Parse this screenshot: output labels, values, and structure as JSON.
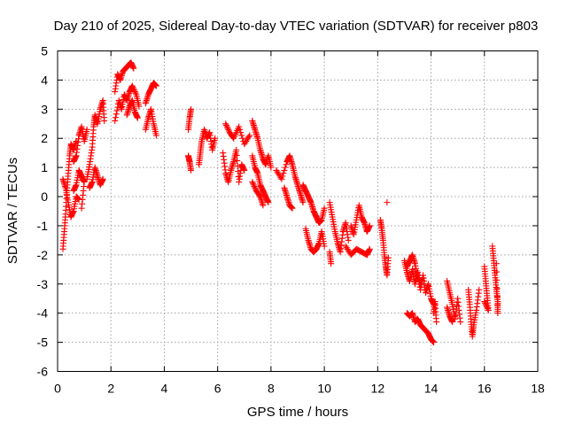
{
  "chart_data": {
    "type": "scatter",
    "title": "Day 210 of 2025, Sidereal Day-to-day VTEC variation (SDTVAR) for receiver p803",
    "xlabel": "GPS time / hours",
    "ylabel": "SDTVAR / TECUs",
    "xlim": [
      0,
      18
    ],
    "ylim": [
      -6,
      5
    ],
    "xticks": [
      0,
      2,
      4,
      6,
      8,
      10,
      12,
      14,
      16,
      18
    ],
    "yticks": [
      -6,
      -5,
      -4,
      -3,
      -2,
      -1,
      0,
      1,
      2,
      3,
      4,
      5
    ],
    "grid": true,
    "marker": "+",
    "marker_color": "#ff0000",
    "series": [
      {
        "name": "SDTVAR",
        "tracks": [
          [
            [
              0.2,
              -1.8
            ],
            [
              0.25,
              -1.2
            ],
            [
              0.3,
              -0.6
            ],
            [
              0.35,
              0.2
            ],
            [
              0.4,
              0.8
            ],
            [
              0.45,
              1.4
            ],
            [
              0.5,
              1.8
            ],
            [
              0.6,
              1.6
            ],
            [
              0.7,
              1.9
            ]
          ],
          [
            [
              0.2,
              0.6
            ],
            [
              0.3,
              0.3
            ],
            [
              0.4,
              -0.2
            ],
            [
              0.5,
              -0.7
            ],
            [
              0.6,
              -0.5
            ],
            [
              0.7,
              0.0
            ],
            [
              0.8,
              -0.1
            ]
          ],
          [
            [
              0.6,
              1.2
            ],
            [
              0.7,
              1.4
            ],
            [
              0.8,
              2.1
            ],
            [
              0.9,
              2.4
            ],
            [
              1.0,
              1.9
            ],
            [
              1.1,
              2.3
            ]
          ],
          [
            [
              0.6,
              0.2
            ],
            [
              0.7,
              0.4
            ],
            [
              0.8,
              0.9
            ],
            [
              0.9,
              0.7
            ],
            [
              1.0,
              0.5
            ],
            [
              0.9,
              -0.4
            ]
          ],
          [
            [
              1.1,
              0.6
            ],
            [
              1.2,
              1.1
            ],
            [
              1.3,
              1.7
            ],
            [
              1.35,
              2.4
            ],
            [
              1.4,
              2.8
            ],
            [
              1.5,
              2.5
            ],
            [
              1.6,
              3.0
            ],
            [
              1.7,
              3.3
            ],
            [
              1.75,
              2.6
            ]
          ],
          [
            [
              1.2,
              0.3
            ],
            [
              1.3,
              0.5
            ],
            [
              1.4,
              1.0
            ],
            [
              1.5,
              0.7
            ],
            [
              1.6,
              0.4
            ],
            [
              1.7,
              0.6
            ]
          ],
          [
            [
              2.15,
              3.6
            ],
            [
              2.25,
              4.2
            ],
            [
              2.35,
              4.0
            ],
            [
              2.45,
              4.3
            ],
            [
              2.55,
              4.4
            ],
            [
              2.65,
              4.5
            ],
            [
              2.75,
              4.6
            ],
            [
              2.85,
              4.4
            ]
          ],
          [
            [
              2.15,
              2.6
            ],
            [
              2.3,
              3.3
            ],
            [
              2.4,
              3.0
            ],
            [
              2.5,
              3.5
            ],
            [
              2.6,
              3.3
            ],
            [
              2.7,
              3.6
            ],
            [
              2.8,
              3.8
            ],
            [
              2.95,
              3.5
            ],
            [
              3.05,
              3.1
            ]
          ],
          [
            [
              2.6,
              2.8
            ],
            [
              2.7,
              3.1
            ],
            [
              2.8,
              3.3
            ],
            [
              2.9,
              2.9
            ],
            [
              3.0,
              2.7
            ]
          ],
          [
            [
              3.3,
              3.2
            ],
            [
              3.4,
              3.5
            ],
            [
              3.5,
              3.7
            ],
            [
              3.6,
              3.9
            ],
            [
              3.7,
              3.8
            ]
          ],
          [
            [
              3.3,
              2.3
            ],
            [
              3.4,
              2.7
            ],
            [
              3.5,
              3.0
            ],
            [
              3.6,
              2.5
            ],
            [
              3.7,
              2.1
            ]
          ],
          [
            [
              4.9,
              2.3
            ],
            [
              4.95,
              2.7
            ],
            [
              5.0,
              3.0
            ]
          ],
          [
            [
              4.9,
              1.4
            ],
            [
              4.95,
              1.2
            ],
            [
              5.0,
              0.9
            ]
          ],
          [
            [
              5.3,
              1.1
            ],
            [
              5.35,
              1.5
            ],
            [
              5.4,
              1.9
            ],
            [
              5.5,
              2.3
            ],
            [
              5.6,
              2.0
            ],
            [
              5.7,
              2.2
            ],
            [
              5.8,
              1.6
            ],
            [
              5.9,
              2.0
            ]
          ],
          [
            [
              6.2,
              1.5
            ],
            [
              6.3,
              0.8
            ],
            [
              6.4,
              0.5
            ],
            [
              6.5,
              0.9
            ],
            [
              6.6,
              1.2
            ],
            [
              6.7,
              1.6
            ],
            [
              6.8,
              0.5
            ],
            [
              6.9,
              1.1
            ],
            [
              7.0,
              0.9
            ]
          ],
          [
            [
              6.3,
              2.5
            ],
            [
              6.45,
              2.2
            ],
            [
              6.6,
              2.0
            ],
            [
              6.8,
              2.4
            ],
            [
              7.0,
              1.8
            ],
            [
              7.2,
              2.1
            ]
          ],
          [
            [
              7.3,
              2.6
            ],
            [
              7.4,
              2.3
            ],
            [
              7.5,
              2.0
            ],
            [
              7.6,
              1.6
            ],
            [
              7.7,
              1.3
            ],
            [
              7.8,
              1.1
            ],
            [
              7.9,
              1.4
            ],
            [
              8.0,
              1.0
            ]
          ],
          [
            [
              7.3,
              1.4
            ],
            [
              7.4,
              1.0
            ],
            [
              7.5,
              0.8
            ],
            [
              7.6,
              0.4
            ],
            [
              7.7,
              0.2
            ],
            [
              7.8,
              0.0
            ],
            [
              7.9,
              -0.2
            ]
          ],
          [
            [
              7.3,
              0.5
            ],
            [
              7.45,
              0.2
            ],
            [
              7.6,
              0.0
            ],
            [
              7.7,
              -0.3
            ]
          ],
          [
            [
              8.2,
              0.9
            ],
            [
              8.4,
              0.6
            ],
            [
              8.6,
              1.2
            ],
            [
              8.7,
              1.4
            ],
            [
              8.8,
              1.1
            ],
            [
              8.9,
              0.7
            ],
            [
              9.0,
              0.4
            ],
            [
              9.1,
              0.1
            ],
            [
              9.2,
              -0.2
            ]
          ],
          [
            [
              8.5,
              0.3
            ],
            [
              8.6,
              0.0
            ],
            [
              8.7,
              -0.3
            ],
            [
              8.8,
              -0.4
            ]
          ],
          [
            [
              9.2,
              0.4
            ],
            [
              9.3,
              0.2
            ],
            [
              9.4,
              0.0
            ],
            [
              9.5,
              -0.2
            ],
            [
              9.6,
              -0.5
            ],
            [
              9.7,
              -0.7
            ],
            [
              9.8,
              -0.9
            ],
            [
              9.9,
              -0.8
            ],
            [
              10.0,
              -0.4
            ]
          ],
          [
            [
              9.3,
              -1.1
            ],
            [
              9.4,
              -1.5
            ],
            [
              9.5,
              -1.8
            ],
            [
              9.6,
              -1.9
            ],
            [
              9.7,
              -1.8
            ],
            [
              9.8,
              -1.6
            ],
            [
              9.9,
              -1.2
            ],
            [
              10.0,
              -1.7
            ]
          ],
          [
            [
              10.2,
              -0.2
            ],
            [
              10.3,
              -0.7
            ],
            [
              10.4,
              -1.2
            ],
            [
              10.5,
              -1.6
            ],
            [
              10.6,
              -1.9
            ],
            [
              10.7,
              -1.2
            ],
            [
              10.8,
              -0.9
            ],
            [
              10.9,
              -1.5
            ]
          ],
          [
            [
              10.2,
              -1.9
            ],
            [
              10.25,
              -2.3
            ]
          ],
          [
            [
              11.0,
              -1.0
            ],
            [
              11.1,
              -1.3
            ],
            [
              11.2,
              -0.8
            ],
            [
              11.3,
              -0.3
            ],
            [
              11.4,
              -0.7
            ],
            [
              11.5,
              -0.9
            ],
            [
              11.6,
              -1.2
            ],
            [
              11.7,
              -1.0
            ]
          ],
          [
            [
              10.8,
              -1.7
            ],
            [
              11.0,
              -2.0
            ],
            [
              11.2,
              -1.8
            ],
            [
              11.4,
              -1.9
            ],
            [
              11.6,
              -2.0
            ],
            [
              11.7,
              -1.8
            ]
          ],
          [
            [
              12.1,
              -0.8
            ],
            [
              12.15,
              -1.1
            ],
            [
              12.2,
              -1.5
            ],
            [
              12.25,
              -2.0
            ],
            [
              12.3,
              -2.4
            ],
            [
              12.35,
              -2.7
            ],
            [
              12.4,
              -2.1
            ]
          ],
          [
            [
              12.35,
              -0.2
            ]
          ],
          [
            [
              13.0,
              -2.2
            ],
            [
              13.1,
              -2.6
            ],
            [
              13.2,
              -2.9
            ],
            [
              13.3,
              -2.5
            ],
            [
              13.4,
              -3.0
            ],
            [
              13.5,
              -2.6
            ],
            [
              13.6,
              -3.2
            ],
            [
              13.7,
              -2.7
            ],
            [
              13.8,
              -3.3
            ],
            [
              13.9,
              -3.0
            ],
            [
              14.0,
              -3.5
            ],
            [
              14.1,
              -3.7
            ]
          ],
          [
            [
              13.1,
              -2.4
            ],
            [
              13.2,
              -2.2
            ],
            [
              13.3,
              -2.0
            ],
            [
              13.4,
              -2.3
            ],
            [
              13.5,
              -2.8
            ],
            [
              13.6,
              -2.9
            ]
          ],
          [
            [
              13.1,
              -4.0
            ],
            [
              13.2,
              -4.1
            ],
            [
              13.3,
              -4.0
            ],
            [
              13.4,
              -4.3
            ],
            [
              13.5,
              -4.2
            ],
            [
              13.6,
              -4.4
            ],
            [
              13.7,
              -4.5
            ],
            [
              13.8,
              -4.6
            ],
            [
              13.9,
              -4.7
            ],
            [
              14.0,
              -4.9
            ],
            [
              14.1,
              -5.0
            ]
          ],
          [
            [
              14.1,
              -4.0
            ],
            [
              14.15,
              -3.6
            ],
            [
              14.2,
              -4.3
            ]
          ],
          [
            [
              14.6,
              -2.9
            ],
            [
              14.7,
              -3.3
            ],
            [
              14.8,
              -3.7
            ],
            [
              14.9,
              -4.2
            ],
            [
              15.0,
              -3.5
            ],
            [
              15.1,
              -4.3
            ]
          ],
          [
            [
              14.6,
              -3.8
            ],
            [
              14.7,
              -4.1
            ],
            [
              14.8,
              -4.3
            ]
          ],
          [
            [
              15.4,
              -3.2
            ],
            [
              15.45,
              -3.7
            ],
            [
              15.5,
              -4.3
            ],
            [
              15.55,
              -4.8
            ],
            [
              15.6,
              -4.4
            ],
            [
              15.7,
              -3.9
            ],
            [
              15.8,
              -3.2
            ]
          ],
          [
            [
              16.0,
              -2.4
            ],
            [
              16.05,
              -2.9
            ],
            [
              16.1,
              -3.4
            ],
            [
              16.15,
              -3.9
            ],
            [
              16.0,
              -3.6
            ]
          ],
          [
            [
              16.3,
              -1.7
            ],
            [
              16.35,
              -2.2
            ],
            [
              16.4,
              -2.7
            ],
            [
              16.45,
              -3.2
            ],
            [
              16.5,
              -3.6
            ],
            [
              16.5,
              -4.0
            ],
            [
              16.45,
              -2.3
            ]
          ]
        ]
      }
    ]
  }
}
